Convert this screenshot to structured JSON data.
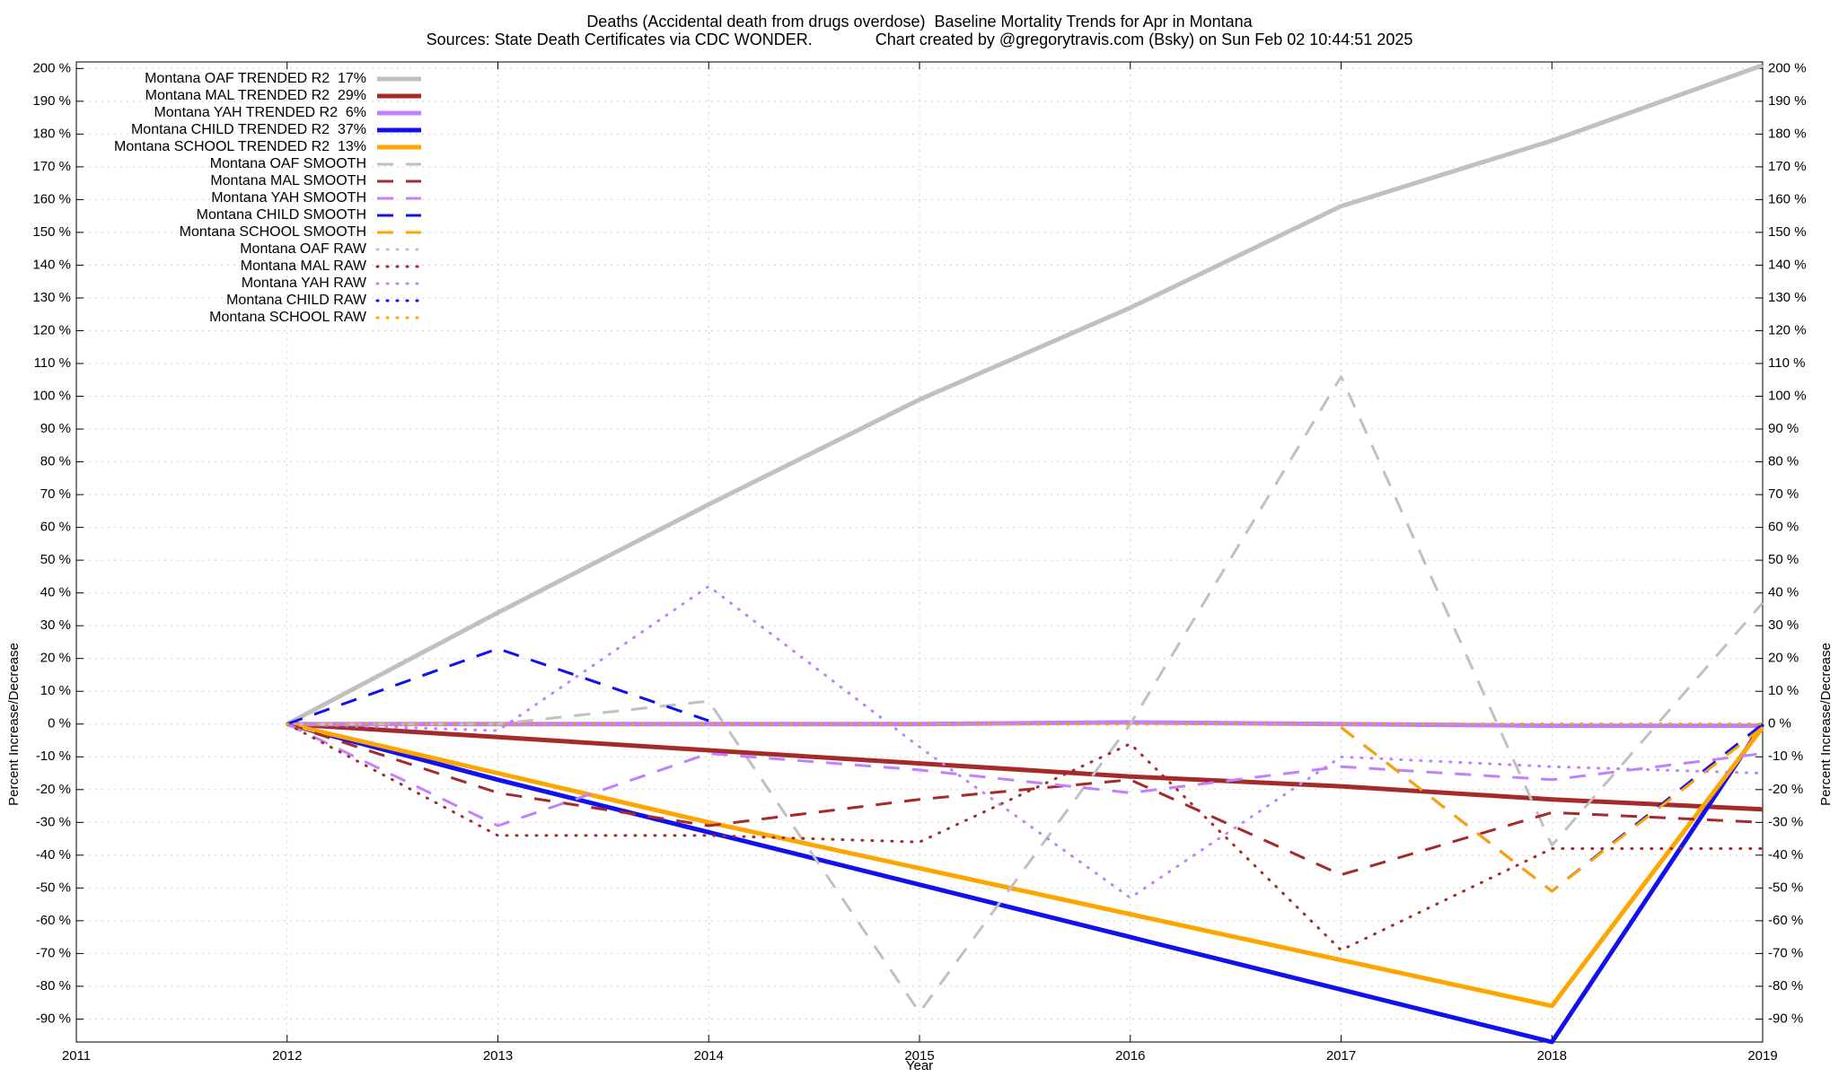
{
  "chart_data": {
    "type": "line",
    "title": "Deaths (Accidental death from drugs overdose)  Baseline Mortality Trends for Apr in Montana",
    "subtitle": "Sources: State Death Certificates via CDC WONDER.              Chart created by @gregorytravis.com (Bsky) on Sun Feb 02 10:44:51 2025",
    "xlabel": "Year",
    "ylabel": "Percent Increase/Decrease",
    "y2label": "Percent Increase/Decrease",
    "x": [
      2012,
      2013,
      2014,
      2015,
      2016,
      2017,
      2018,
      2019
    ],
    "xlim": [
      2011,
      2019
    ],
    "xticks": [
      2011,
      2012,
      2013,
      2014,
      2015,
      2016,
      2017,
      2018,
      2019
    ],
    "ylim": [
      -97,
      202
    ],
    "yticks": [
      {
        "value": -90,
        "label": "-90 %"
      },
      {
        "value": -80,
        "label": "-80 %"
      },
      {
        "value": -70,
        "label": "-70 %"
      },
      {
        "value": -60,
        "label": "-60 %"
      },
      {
        "value": -50,
        "label": "-50 %"
      },
      {
        "value": -40,
        "label": "-40 %"
      },
      {
        "value": -30,
        "label": "-30 %"
      },
      {
        "value": -20,
        "label": "-20 %"
      },
      {
        "value": -10,
        "label": "-10 %"
      },
      {
        "value": 0,
        "label": "0 %"
      },
      {
        "value": 10,
        "label": "10 %"
      },
      {
        "value": 20,
        "label": "20 %"
      },
      {
        "value": 30,
        "label": "30 %"
      },
      {
        "value": 40,
        "label": "40 %"
      },
      {
        "value": 50,
        "label": "50 %"
      },
      {
        "value": 60,
        "label": "60 %"
      },
      {
        "value": 70,
        "label": "70 %"
      },
      {
        "value": 80,
        "label": "80 %"
      },
      {
        "value": 90,
        "label": "90 %"
      },
      {
        "value": 100,
        "label": "100 %"
      },
      {
        "value": 110,
        "label": "110 %"
      },
      {
        "value": 120,
        "label": "120 %"
      },
      {
        "value": 130,
        "label": "130 %"
      },
      {
        "value": 140,
        "label": "140 %"
      },
      {
        "value": 150,
        "label": "150 %"
      },
      {
        "value": 160,
        "label": "160 %"
      },
      {
        "value": 170,
        "label": "170 %"
      },
      {
        "value": 180,
        "label": "180 %"
      },
      {
        "value": 190,
        "label": "190 %"
      },
      {
        "value": 200,
        "label": "200 %"
      }
    ],
    "grid": true,
    "legend": "upper-left",
    "series": [
      {
        "name": "Montana OAF TRENDED R2  17%",
        "color": "#c0c0c0",
        "style": "solid",
        "values": [
          0,
          34,
          67,
          99,
          127,
          158,
          178,
          201
        ]
      },
      {
        "name": "Montana MAL TRENDED R2  29%",
        "color": "#a52a2a",
        "style": "solid",
        "values": [
          0,
          -4,
          -8,
          -12,
          -16,
          -19,
          -23,
          -26
        ]
      },
      {
        "name": "Montana YAH TRENDED R2  6%",
        "color": "#c080ff",
        "style": "solid",
        "values": [
          0,
          0,
          0,
          0,
          0.5,
          0,
          -0.5,
          -0.5
        ]
      },
      {
        "name": "Montana CHILD TRENDED R2  37%",
        "color": "#1010f0",
        "style": "solid",
        "values": [
          0,
          -17,
          -33,
          -49,
          -65,
          -81,
          -97,
          0
        ]
      },
      {
        "name": "Montana SCHOOL TRENDED R2  13%",
        "color": "#ffa500",
        "style": "solid",
        "values": [
          0,
          -15,
          -30,
          -44,
          -58,
          -72,
          -86,
          -1
        ]
      },
      {
        "name": "Montana OAF SMOOTH",
        "color": "#c0c0c0",
        "style": "dashed",
        "values": [
          0,
          0,
          7,
          -88,
          0,
          106,
          -37,
          37
        ]
      },
      {
        "name": "Montana MAL SMOOTH",
        "color": "#a52a2a",
        "style": "dashed",
        "values": [
          0,
          -21,
          -31,
          -23,
          -17,
          -46,
          -27,
          -30
        ]
      },
      {
        "name": "Montana YAH SMOOTH",
        "color": "#c080ff",
        "style": "dashed",
        "values": [
          0,
          -31,
          -9,
          -14,
          -21,
          -13,
          -17,
          -9
        ]
      },
      {
        "name": "Montana CHILD SMOOTH",
        "color": "#1010f0",
        "style": "dashed",
        "values": [
          0,
          23,
          1,
          null,
          null,
          -1,
          -51,
          0
        ]
      },
      {
        "name": "Montana SCHOOL SMOOTH",
        "color": "#ffa500",
        "style": "dashed",
        "values": [
          null,
          null,
          null,
          null,
          null,
          -1,
          -51,
          -1
        ]
      },
      {
        "name": "Montana OAF RAW",
        "color": "#c0c0c0",
        "style": "dotted",
        "values": [
          0,
          0,
          0,
          0,
          0,
          0,
          0,
          0
        ]
      },
      {
        "name": "Montana MAL RAW",
        "color": "#a52a2a",
        "style": "dotted",
        "values": [
          0,
          -34,
          -34,
          -36,
          -6,
          -69,
          -38,
          -38
        ]
      },
      {
        "name": "Montana YAH RAW",
        "color": "#c080ff",
        "style": "dotted",
        "values": [
          0,
          -2,
          42,
          -7,
          -53,
          -10,
          -13,
          -15
        ]
      },
      {
        "name": "Montana CHILD RAW",
        "color": "#1010f0",
        "style": "dotted",
        "values": [
          0,
          0,
          0,
          0,
          0,
          0,
          0,
          0
        ]
      },
      {
        "name": "Montana SCHOOL RAW",
        "color": "#ffa500",
        "style": "dotted",
        "values": [
          0,
          0,
          0,
          0,
          0,
          0,
          0,
          0
        ]
      }
    ]
  }
}
